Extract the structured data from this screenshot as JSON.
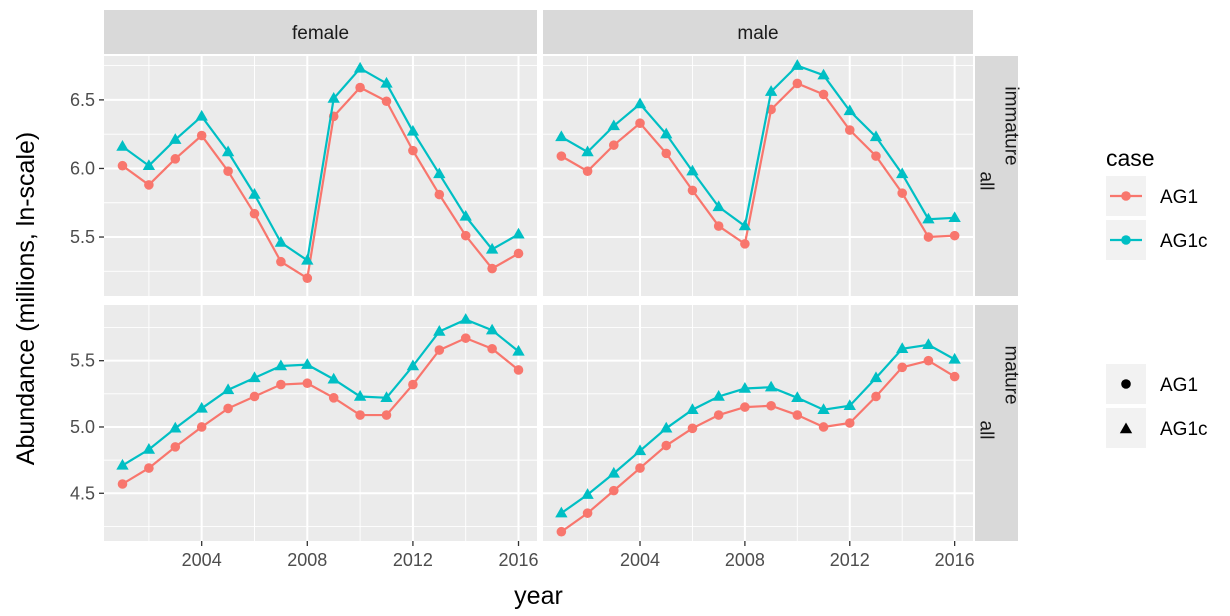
{
  "chart_data": {
    "type": "line",
    "xlabel": "year",
    "ylabel": "Abundance (millions, ln-scale)",
    "col_facets": [
      "female",
      "male"
    ],
    "row_facets": [
      {
        "label": "immature",
        "sub": "all"
      },
      {
        "label": "mature",
        "sub": "all"
      }
    ],
    "x_ticks": [
      2004,
      2008,
      2012,
      2016
    ],
    "xlim": [
      2000.3,
      2016.7
    ],
    "rows": [
      {
        "ylim": [
          5.07,
          6.82
        ],
        "y_ticks": [
          5.5,
          6.0,
          6.5
        ],
        "y_tick_labels": [
          "5.5",
          "6.0",
          "6.5"
        ]
      },
      {
        "ylim": [
          4.14,
          5.92
        ],
        "y_ticks": [
          4.5,
          5.0,
          5.5
        ],
        "y_tick_labels": [
          "4.5",
          "5.0",
          "5.5"
        ]
      }
    ],
    "x": [
      2001,
      2002,
      2003,
      2004,
      2005,
      2006,
      2007,
      2008,
      2009,
      2010,
      2011,
      2012,
      2013,
      2014,
      2015,
      2016
    ],
    "panels": [
      {
        "col": "female",
        "row": "immature",
        "series": [
          {
            "name": "AG1",
            "values": [
              6.02,
              5.88,
              6.07,
              6.24,
              5.98,
              5.67,
              5.32,
              5.2,
              6.38,
              6.59,
              6.49,
              6.13,
              5.81,
              5.51,
              5.27,
              5.38
            ]
          },
          {
            "name": "AG1c",
            "values": [
              6.16,
              6.02,
              6.21,
              6.38,
              6.12,
              5.81,
              5.46,
              5.33,
              6.51,
              6.73,
              6.62,
              6.27,
              5.96,
              5.65,
              5.41,
              5.52
            ]
          }
        ]
      },
      {
        "col": "male",
        "row": "immature",
        "series": [
          {
            "name": "AG1",
            "values": [
              6.09,
              5.98,
              6.17,
              6.33,
              6.11,
              5.84,
              5.58,
              5.45,
              6.43,
              6.62,
              6.54,
              6.28,
              6.09,
              5.82,
              5.5,
              5.51
            ]
          },
          {
            "name": "AG1c",
            "values": [
              6.23,
              6.12,
              6.31,
              6.47,
              6.25,
              5.98,
              5.72,
              5.58,
              6.56,
              6.75,
              6.68,
              6.42,
              6.23,
              5.96,
              5.63,
              5.64
            ]
          }
        ]
      },
      {
        "col": "female",
        "row": "mature",
        "series": [
          {
            "name": "AG1",
            "values": [
              4.57,
              4.69,
              4.85,
              5.0,
              5.14,
              5.23,
              5.32,
              5.33,
              5.22,
              5.09,
              5.09,
              5.32,
              5.58,
              5.67,
              5.59,
              5.43
            ]
          },
          {
            "name": "AG1c",
            "values": [
              4.71,
              4.83,
              4.99,
              5.14,
              5.28,
              5.37,
              5.46,
              5.47,
              5.36,
              5.23,
              5.22,
              5.46,
              5.72,
              5.81,
              5.73,
              5.57
            ]
          }
        ]
      },
      {
        "col": "male",
        "row": "mature",
        "series": [
          {
            "name": "AG1",
            "values": [
              4.21,
              4.35,
              4.52,
              4.69,
              4.86,
              4.99,
              5.09,
              5.15,
              5.16,
              5.09,
              5.0,
              5.03,
              5.23,
              5.45,
              5.5,
              5.38
            ]
          },
          {
            "name": "AG1c",
            "values": [
              4.35,
              4.49,
              4.65,
              4.82,
              4.99,
              5.13,
              5.23,
              5.29,
              5.3,
              5.22,
              5.13,
              5.16,
              5.37,
              5.59,
              5.62,
              5.51
            ]
          }
        ]
      }
    ],
    "legend": {
      "title": "case",
      "color_entries": [
        {
          "label": "AG1",
          "color": "#F8766D"
        },
        {
          "label": "AG1c",
          "color": "#00BFC4"
        }
      ],
      "shape_entries": [
        {
          "label": "AG1",
          "shape": "circle"
        },
        {
          "label": "AG1c",
          "shape": "triangle"
        }
      ],
      "placement": "right"
    },
    "grid": true,
    "colors": {
      "AG1": "#F8766D",
      "AG1c": "#00BFC4",
      "panel": "#EBEBEB",
      "strip": "#D9D9D9",
      "grid": "#FFFFFF"
    }
  }
}
